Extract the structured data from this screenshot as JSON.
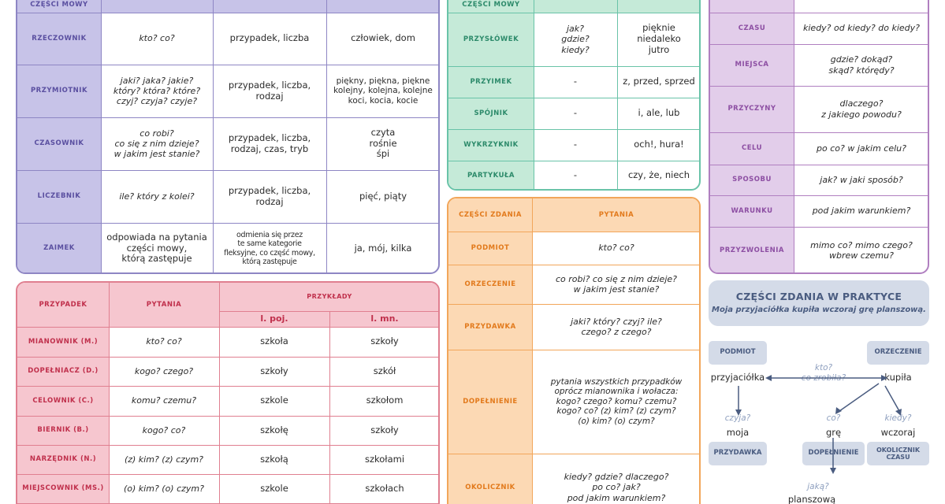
{
  "parts_of_speech": {
    "header_label": "CZĘŚCI MOWY",
    "rows": [
      {
        "name": "RZECZOWNIK",
        "questions": "kto? co?",
        "inflects_by": "przypadek, liczba",
        "examples": "człowiek, dom"
      },
      {
        "name": "PRZYMIOTNIK",
        "questions": "jaki? jaka? jakie?\nktóry? która? które?\nczyj? czyja? czyje?",
        "inflects_by": "przypadek, liczba,\nrodzaj",
        "examples": "piękny, piękna, piękne\nkolejny, kolejna, kolejne\nkoci, kocia, kocie"
      },
      {
        "name": "CZASOWNIK",
        "questions": "co robi?\nco się z nim dzieje?\nw jakim jest stanie?",
        "inflects_by": "przypadek, liczba,\nrodzaj, czas, tryb",
        "examples": "czyta\nrośnie\nśpi"
      },
      {
        "name": "LICZEBNIK",
        "questions": "ile? który z kolei?",
        "inflects_by": "przypadek, liczba,\nrodzaj",
        "examples": "pięć, piąty"
      },
      {
        "name": "ZAIMEK",
        "questions": "odpowiada na pytania\nczęści mowy,\nktórą zastępuje",
        "inflects_by": "odmienia się przez\nte same kategorie\nfleksyjne, co część mowy,\nktórą zastępuje",
        "examples": "ja, mój, kilka"
      }
    ]
  },
  "uninflected_parts": {
    "header_label": "CZĘŚCI MOWY",
    "rows": [
      {
        "name": "PRZYSŁÓWEK",
        "questions": "jak?\ngdzie?\nkiedy?",
        "examples": "pięknie\nniedaleko\njutro"
      },
      {
        "name": "PRZYIMEK",
        "questions": "-",
        "examples": "z, przed, sprzed"
      },
      {
        "name": "SPÓJNIK",
        "questions": "-",
        "examples": "i, ale, lub"
      },
      {
        "name": "WYKRZYKNIK",
        "questions": "-",
        "examples": "och!, hura!"
      },
      {
        "name": "PARTYKUŁA",
        "questions": "-",
        "examples": "czy, że, niech"
      }
    ]
  },
  "adverbials": {
    "rows": [
      {
        "name": "CZASU",
        "questions": "kiedy? od kiedy? do kiedy?"
      },
      {
        "name": "MIEJSCA",
        "questions": "gdzie? dokąd?\nskąd? którędy?"
      },
      {
        "name": "PRZYCZYNY",
        "questions": "dlaczego?\nz jakiego powodu?"
      },
      {
        "name": "CELU",
        "questions": "po co? w jakim celu?"
      },
      {
        "name": "SPOSOBU",
        "questions": "jak? w jaki sposób?"
      },
      {
        "name": "WARUNKU",
        "questions": "pod jakim warunkiem?"
      },
      {
        "name": "PRZYZWOLENIA",
        "questions": "mimo co? mimo czego?\nwbrew czemu?"
      }
    ]
  },
  "cases": {
    "header": {
      "case": "PRZYPADEK",
      "questions": "PYTANIA",
      "examples": "PRZYKŁADY",
      "singular": "l. poj.",
      "plural": "l. mn."
    },
    "rows": [
      {
        "name": "MIANOWNIK (M.)",
        "questions": "kto? co?",
        "singular": "szkoła",
        "plural": "szkoły"
      },
      {
        "name": "DOPEŁNIACZ (D.)",
        "questions": "kogo? czego?",
        "singular": "szkoły",
        "plural": "szkół"
      },
      {
        "name": "CELOWNIK (C.)",
        "questions": "komu? czemu?",
        "singular": "szkole",
        "plural": "szkołom"
      },
      {
        "name": "BIERNIK (B.)",
        "questions": "kogo? co?",
        "singular": "szkołę",
        "plural": "szkoły"
      },
      {
        "name": "NARZĘDNIK (N.)",
        "questions": "(z) kim? (z) czym?",
        "singular": "szkołą",
        "plural": "szkołami"
      },
      {
        "name": "MIEJSCOWNIK (Ms.)",
        "questions": "(o) kim? (o) czym?",
        "singular": "szkole",
        "plural": "szkołach"
      }
    ]
  },
  "sentence_parts": {
    "header": {
      "part": "CZĘŚCI ZDANIA",
      "questions": "PYTANIA"
    },
    "rows": [
      {
        "name": "PODMIOT",
        "questions": "kto? co?"
      },
      {
        "name": "ORZECZENIE",
        "questions": "co robi? co się z nim dzieje?\nw jakim jest stanie?"
      },
      {
        "name": "PRZYDAWKA",
        "questions": "jaki? który? czyj? ile?\nczego? z czego?"
      },
      {
        "name": "DOPEŁNIENIE",
        "questions": "pytania wszystkich przypadków\noprócz mianownika i wołacza:\nkogo? czego? komu? czemu?\nkogo? co? (z) kim? (z) czym?\n(o) kim? (o) czym?"
      },
      {
        "name": "OKOLICZNIK",
        "questions": "kiedy? gdzie? dlaczego?\npo co? jak?\npod jakim warunkiem?"
      }
    ]
  },
  "practice": {
    "title": "CZĘŚCI ZDANIA W PRAKTYCE",
    "sentence": "Moja przyjaciółka kupiła wczoraj grę planszową.",
    "tags": {
      "subject": "PODMIOT",
      "predicate": "ORZECZENIE",
      "attribute": "PRZYDAWKA",
      "object": "DOPEŁNIENIE",
      "adverbial": "OKOLICZNIK\nCZASU"
    },
    "words": {
      "subject": "przyjaciółka",
      "predicate": "kupiła",
      "attribute": "moja",
      "object": "grę",
      "adverbial": "wczoraj",
      "object_attr": "planszową"
    },
    "questions": {
      "subj_pred": "kto?\nco zrobiła?",
      "attribute": "czyja?",
      "object": "co?",
      "adverbial": "kiedy?",
      "object_attr": "jaką?"
    }
  }
}
